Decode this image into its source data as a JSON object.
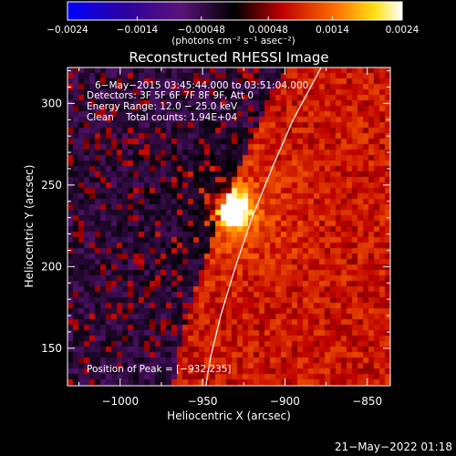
{
  "chart_data": {
    "type": "heatmap",
    "title": "Reconstructed RHESSI Image",
    "xlabel": "Heliocentric X (arcsec)",
    "ylabel": "Heliocentric Y (arcsec)",
    "xlim": [
      -1032,
      -836
    ],
    "ylim": [
      127,
      322
    ],
    "x_ticks": [
      -1000,
      -950,
      -900,
      -850
    ],
    "x_tick_labels": [
      "−1000",
      "−950",
      "−900",
      "−850"
    ],
    "y_ticks": [
      150,
      200,
      250,
      300
    ],
    "y_tick_labels": [
      "150",
      "200",
      "250",
      "300"
    ],
    "colorbar": {
      "min": -0.0024,
      "max": 0.0024,
      "ticks": [
        -0.0024,
        -0.0014,
        -0.00048,
        0.00048,
        0.0014,
        0.0024
      ],
      "tick_labels": [
        "−0.0024",
        "−0.0014",
        "−0.00048",
        "0.00048",
        "0.0014",
        "0.0024"
      ],
      "units_label": "(photons cm⁻² s⁻¹ asec⁻²)"
    },
    "annotations": [
      "6−May−2015 03:45:44.000 to 03:51:04.000",
      "Detectors: 3F 5F 6F 7F 8F 9F, Att 0",
      "Energy Range: 12.0 − 25.0 keV",
      "Clean    Total counts: 1.94E+04"
    ],
    "peak_label": "Position of Peak = [−932,235]",
    "peak": {
      "x": -932,
      "y": 235
    },
    "limb_curve": [
      {
        "x": -878,
        "y": 322
      },
      {
        "x": -895,
        "y": 290
      },
      {
        "x": -908,
        "y": 260
      },
      {
        "x": -920,
        "y": 230
      },
      {
        "x": -930,
        "y": 200
      },
      {
        "x": -939,
        "y": 170
      },
      {
        "x": -945,
        "y": 145
      },
      {
        "x": -948,
        "y": 127
      }
    ],
    "timestamp": "21−May−2022 01:18"
  }
}
